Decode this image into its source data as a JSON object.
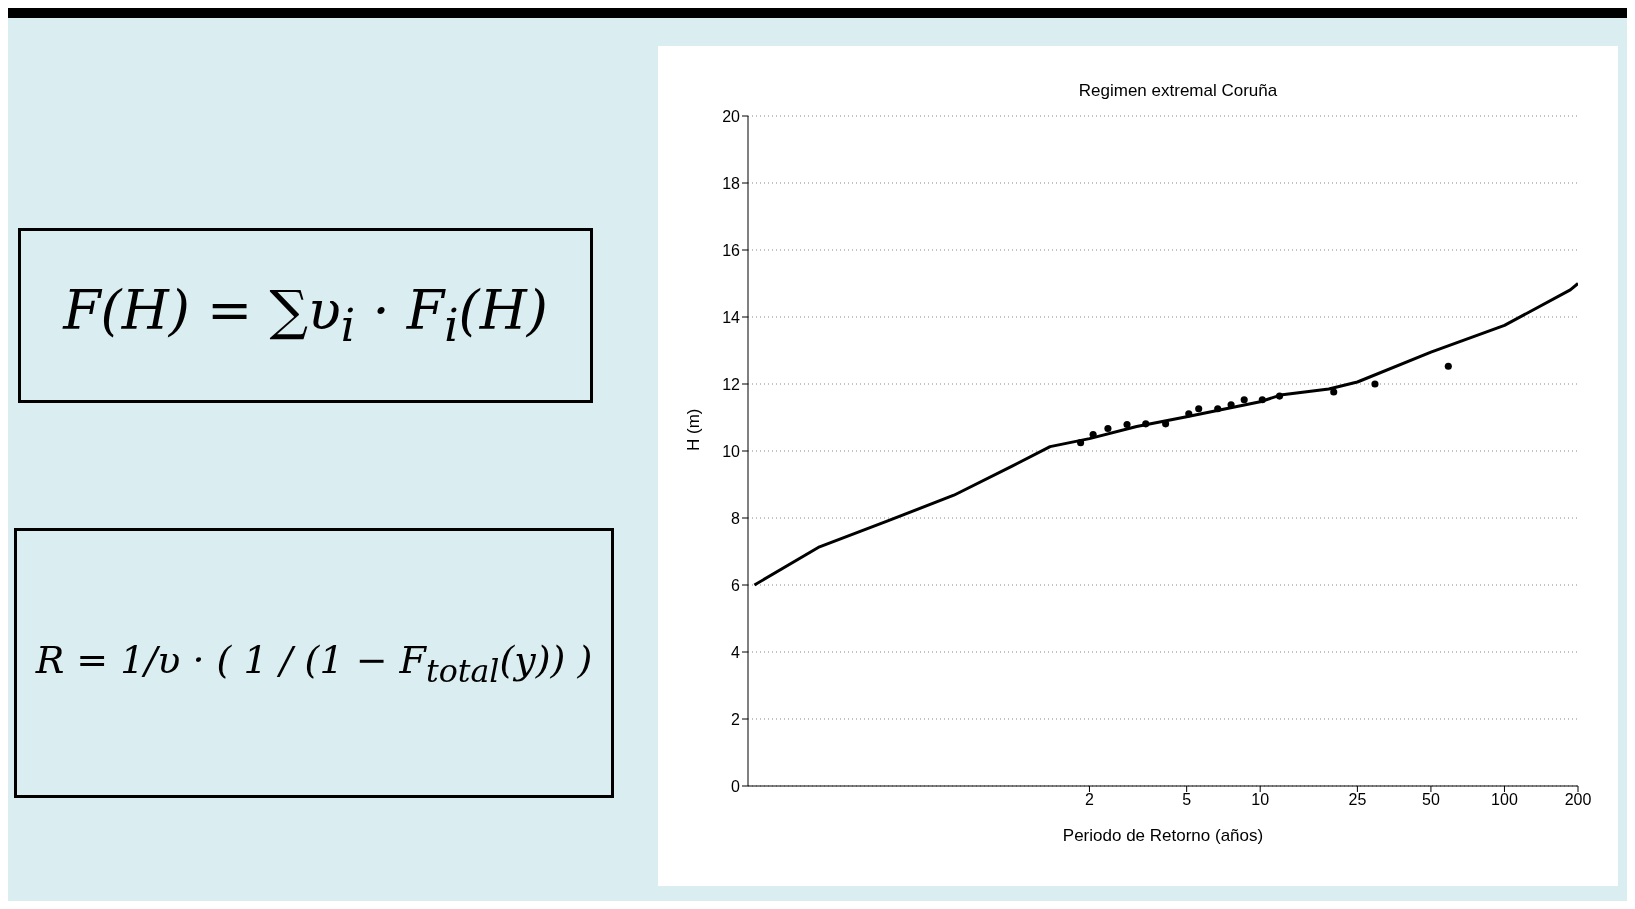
{
  "chart_data": {
    "type": "line",
    "title": "Regimen extremal Coruña",
    "xlabel": "Periodo de Retorno (años)",
    "ylabel": "H (m)",
    "annotations": [
      "F(H) = ∑υ$_{i}$ · F$_{i}$(H)",
      "R = 1/υ · ( 1 / (1 − F$_{total}$(y)) )"
    ],
    "log": "x",
    "grid": "y",
    "xlim": [
      0.08,
      200
    ],
    "xticks": [
      2,
      5,
      10,
      25,
      50,
      100,
      200
    ],
    "ylim": [
      0,
      20
    ],
    "yticks": [
      0,
      2,
      4,
      6,
      8,
      10,
      12,
      14,
      16,
      18,
      20
    ],
    "series": [
      {
        "color": "#000000",
        "x": [
          0.085,
          0.157,
          0.295,
          0.557,
          0.96,
          1.38,
          2,
          3.12,
          5,
          10,
          12.1,
          19.1,
          25,
          50,
          100,
          186,
          200
        ],
        "values": [
          6.0,
          7.14,
          7.9,
          8.68,
          9.54,
          10.13,
          10.37,
          10.73,
          11.02,
          11.47,
          11.67,
          11.85,
          12.06,
          12.95,
          13.75,
          14.81,
          15.0
        ]
      },
      {
        "type": "scatter",
        "color": "#000000",
        "marker": "circle",
        "x": [
          1.84,
          2.07,
          2.38,
          2.85,
          3.4,
          4.1,
          5.1,
          5.6,
          6.7,
          7.6,
          8.6,
          10.2,
          12.0,
          20,
          29.5,
          58.9
        ],
        "values": [
          10.25,
          10.49,
          10.67,
          10.79,
          10.81,
          10.81,
          11.11,
          11.26,
          11.26,
          11.38,
          11.53,
          11.53,
          11.64,
          11.76,
          12.0,
          12.53
        ]
      }
    ]
  }
}
